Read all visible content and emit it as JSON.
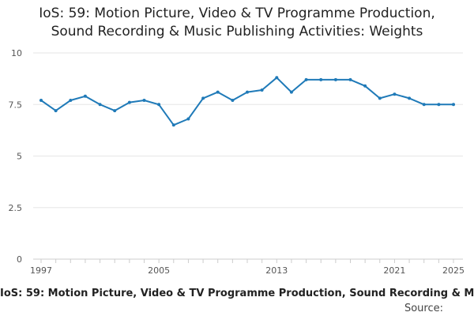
{
  "chart_data": {
    "type": "line",
    "title_lines": [
      "IoS: 59: Motion Picture, Video & TV Programme Production,",
      "Sound Recording & Music Publishing Activities: Weights"
    ],
    "xlabel": "",
    "ylabel": "",
    "ylim": [
      0,
      10
    ],
    "yticks": [
      "0",
      "2.5",
      "5",
      "7.5",
      "10"
    ],
    "xlim": [
      1997,
      2025
    ],
    "xticks": [
      "1997",
      "2005",
      "2013",
      "2021",
      "2025"
    ],
    "grid": true,
    "series": [
      {
        "name": "IoS: 59: Motion Picture, Video & TV Programme Production, Sound Recording & Music Publishing Activities: Weights",
        "color": "#1f7ab8",
        "x": [
          1997,
          1998,
          1999,
          2000,
          2001,
          2002,
          2003,
          2004,
          2005,
          2006,
          2007,
          2008,
          2009,
          2010,
          2011,
          2012,
          2013,
          2014,
          2015,
          2016,
          2017,
          2018,
          2019,
          2020,
          2021,
          2022,
          2023,
          2024,
          2025
        ],
        "values": [
          7.7,
          7.2,
          7.7,
          7.9,
          7.5,
          7.2,
          7.6,
          7.7,
          7.5,
          6.5,
          6.8,
          7.8,
          8.1,
          7.7,
          8.1,
          8.2,
          8.8,
          8.1,
          8.7,
          8.7,
          8.7,
          8.7,
          8.4,
          7.8,
          8.0,
          7.8,
          7.5,
          7.5,
          7.5
        ]
      }
    ],
    "legend_placement": "bottom",
    "source_label": "Source:"
  }
}
